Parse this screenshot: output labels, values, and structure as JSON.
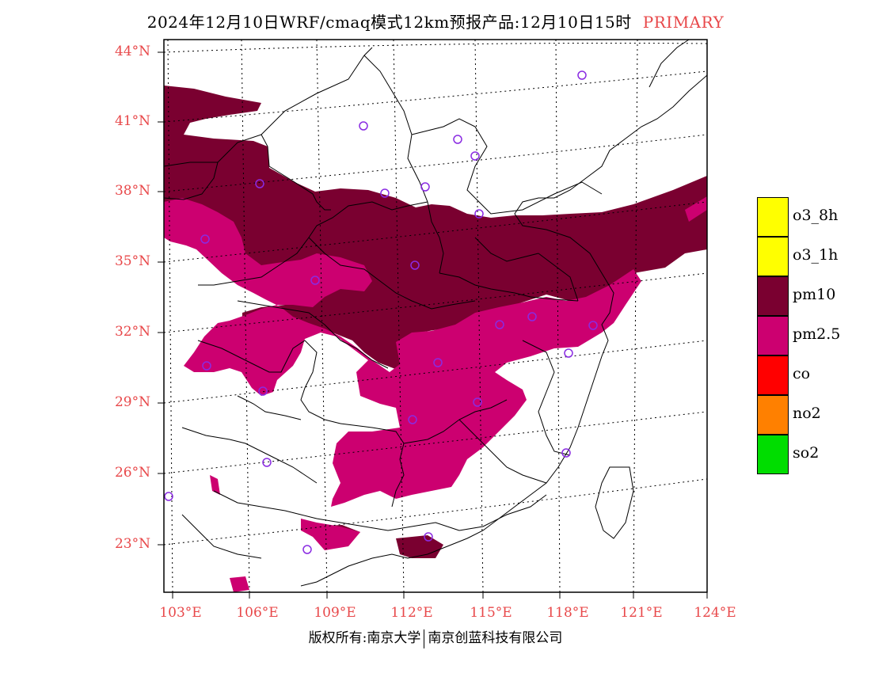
{
  "title": {
    "text": "2024年12月10日WRF/cmaq模式12km预报产品:12月10日15时",
    "tag": "PRIMARY"
  },
  "axes": {
    "lat_labels": [
      "44°N",
      "41°N",
      "38°N",
      "35°N",
      "32°N",
      "29°N",
      "26°N",
      "23°N"
    ],
    "lon_labels": [
      "103°E",
      "106°E",
      "109°E",
      "112°E",
      "115°E",
      "118°E",
      "121°E",
      "124°E"
    ]
  },
  "legend": [
    {
      "label": "o3_8h",
      "color": "#ffff00"
    },
    {
      "label": "o3_1h",
      "color": "#ffff00"
    },
    {
      "label": "pm10",
      "color": "#7a0030"
    },
    {
      "label": "pm2.5",
      "color": "#cc0070"
    },
    {
      "label": "co",
      "color": "#ff0000"
    },
    {
      "label": "no2",
      "color": "#ff8000"
    },
    {
      "label": "so2",
      "color": "#00dd00"
    }
  ],
  "footer": {
    "left": "版权所有:南京大学",
    "right": "南京创蓝科技有限公司"
  },
  "colors": {
    "pm10": "#7a0030",
    "pm25": "#cc0070",
    "label": "#e8484a",
    "station": "#8a2be2"
  }
}
